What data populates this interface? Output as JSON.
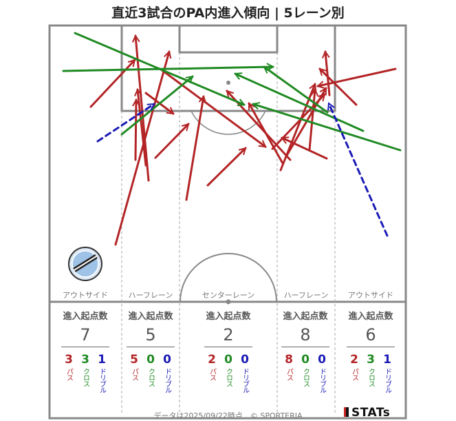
{
  "title": "直近3試合のPA内進入傾向 | 5レーン別",
  "lanes": [
    {
      "name": "アウトサイド",
      "header": "進入起点数",
      "total": "7",
      "pass": "3",
      "cross": "3",
      "dribble": "1"
    },
    {
      "name": "ハーフレーン",
      "header": "進入起点数",
      "total": "5",
      "pass": "5",
      "cross": "0",
      "dribble": "0"
    },
    {
      "name": "センターレーン",
      "header": "進入起点数",
      "total": "2",
      "pass": "2",
      "cross": "0",
      "dribble": "0"
    },
    {
      "name": "ハーフレーン",
      "header": "進入起点数",
      "total": "8",
      "pass": "8",
      "cross": "0",
      "dribble": "0"
    },
    {
      "name": "アウトサイド",
      "header": "進入起点数",
      "total": "6",
      "pass": "2",
      "cross": "3",
      "dribble": "1"
    }
  ],
  "labels": {
    "pass": "パス",
    "cross": "クロス",
    "dribble": "ドリブル"
  },
  "colors": {
    "pass": "#b32426",
    "cross": "#1f8a22",
    "dribble": "#1a1ab5"
  },
  "logo": "FC OSAKA crest",
  "footer": "データは2025/09/22時点　© SPORTERIA",
  "brand": "STATs"
}
